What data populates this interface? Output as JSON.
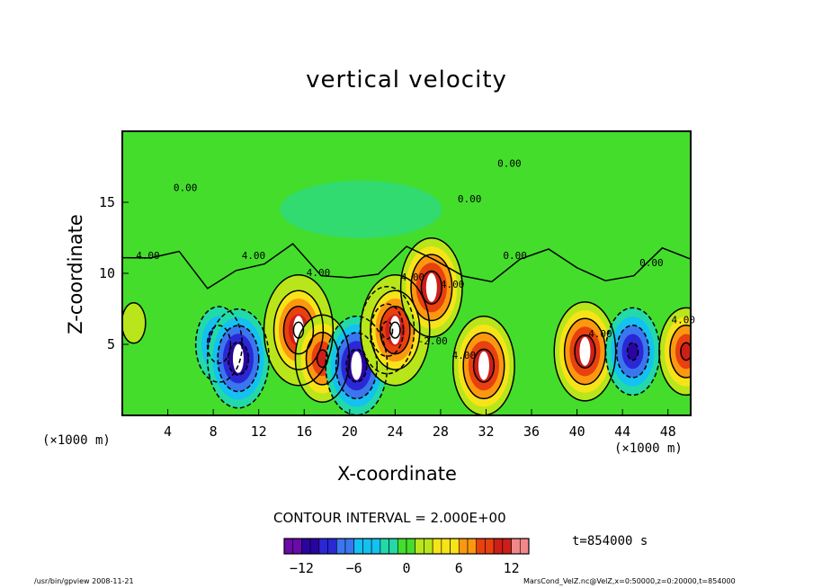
{
  "chart_data": {
    "type": "heatmap",
    "title": "vertical velocity",
    "xlabel": "X-coordinate",
    "ylabel": "Z-coordinate",
    "x_unit_left": "(×1000 m)",
    "x_unit_right": "(×1000 m)",
    "x_ticks": [
      "4",
      "8",
      "12",
      "16",
      "20",
      "24",
      "28",
      "32",
      "36",
      "40",
      "44",
      "48"
    ],
    "y_ticks": [
      "5",
      "10",
      "15"
    ],
    "xlim": [
      0,
      50
    ],
    "ylim": [
      0,
      20
    ],
    "contour_interval_text": "CONTOUR INTERVAL = 2.000E+00",
    "time_text": "t=854000 s",
    "colorbar": {
      "min": -14,
      "max": 14,
      "ticks": [
        "−12",
        "−6",
        "0",
        "6",
        "12"
      ]
    },
    "contour_labels": [
      "4.00",
      "4.00",
      "4.00",
      "4.00",
      "4.00",
      "4.00",
      "4.00",
      "4.00",
      "0.00",
      "0.00",
      "0.00",
      "0.00",
      "0.00",
      "-2.00"
    ],
    "cells": [
      {
        "x": 1.0,
        "z": 6.5,
        "w": 1.6
      },
      {
        "x": 8.5,
        "z": 5.0,
        "w": -8.0
      },
      {
        "x": 10.2,
        "z": 4.0,
        "w": -11.5
      },
      {
        "x": 15.5,
        "z": 6.0,
        "w": 14.0
      },
      {
        "x": 17.6,
        "z": 4.0,
        "w": 10.0
      },
      {
        "x": 20.6,
        "z": 3.5,
        "w": -12.0
      },
      {
        "x": 23.3,
        "z": 6.0,
        "w": -9.0
      },
      {
        "x": 24.0,
        "z": 6.0,
        "w": 14.0
      },
      {
        "x": 27.2,
        "z": 9.0,
        "w": 12.0
      },
      {
        "x": 31.8,
        "z": 3.5,
        "w": 12.5
      },
      {
        "x": 40.7,
        "z": 4.5,
        "w": 11.0
      },
      {
        "x": 44.9,
        "z": 4.5,
        "w": -9.0
      },
      {
        "x": 49.6,
        "z": 4.5,
        "w": 10.0
      }
    ],
    "colors": {
      "neutral": "#44dd2c",
      "pos1": "#b8e61a",
      "pos2": "#f6e419",
      "pos3": "#fb9810",
      "pos4": "#e8400e",
      "pos5": "#cd1e18",
      "pos6": "#f2878a",
      "neg1": "#23d9a8",
      "neg2": "#14c1f0",
      "neg3": "#3a76ee",
      "neg4": "#2a28d6",
      "neg5": "#2a049e",
      "neg6": "#6a0aa8"
    }
  },
  "footer": {
    "left": "/usr/bin/gpview   2008-11-21",
    "right": "MarsCond_VelZ.nc@VelZ,x=0:50000,z=0:20000,t=854000"
  }
}
